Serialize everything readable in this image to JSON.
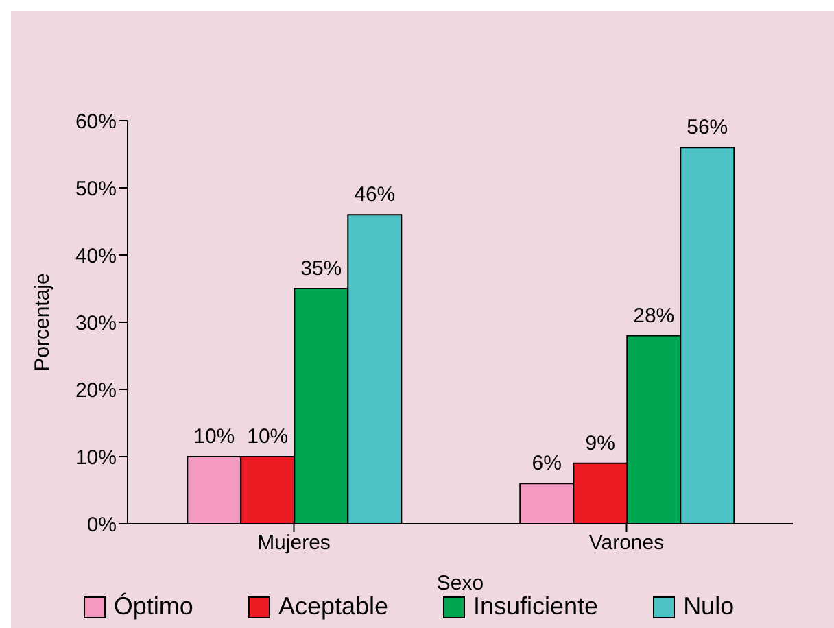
{
  "chart_data": {
    "type": "bar",
    "xlabel": "Sexo",
    "ylabel": "Porcentaje",
    "categories": [
      "Mujeres",
      "Varones"
    ],
    "series": [
      {
        "name": "Óptimo",
        "color": "#f49ac1",
        "values": [
          10,
          6
        ],
        "value_labels": [
          "10%",
          "6%"
        ]
      },
      {
        "name": "Aceptable",
        "color": "#ed1c24",
        "values": [
          10,
          9
        ],
        "value_labels": [
          "10%",
          "9%"
        ]
      },
      {
        "name": "Insuficiente",
        "color": "#00a651",
        "values": [
          35,
          28
        ],
        "value_labels": [
          "35%",
          "28%"
        ]
      },
      {
        "name": "Nulo",
        "color": "#4dc3c8",
        "values": [
          46,
          56
        ],
        "value_labels": [
          "46%",
          "56%"
        ]
      }
    ],
    "ylim": [
      0,
      60
    ],
    "yticks": [
      {
        "value": 0,
        "label": "0%"
      },
      {
        "value": 10,
        "label": "10%"
      },
      {
        "value": 20,
        "label": "20%"
      },
      {
        "value": 30,
        "label": "30%"
      },
      {
        "value": 40,
        "label": "40%"
      },
      {
        "value": 50,
        "label": "50%"
      },
      {
        "value": 60,
        "label": "60%"
      }
    ],
    "grid": false,
    "legend": "bottom"
  }
}
